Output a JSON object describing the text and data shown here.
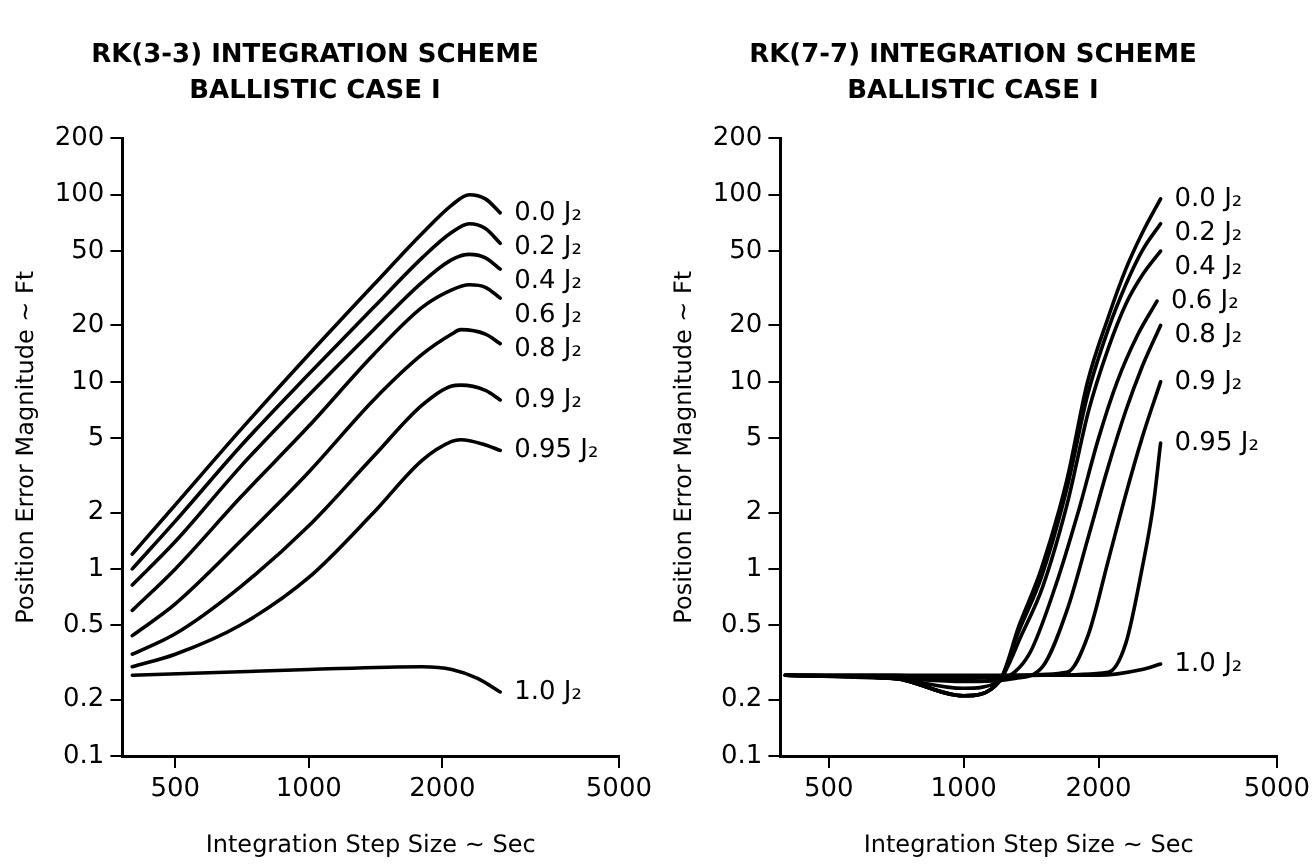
{
  "chart_data": [
    {
      "type": "line",
      "title": "RK(3-3) INTEGRATION SCHEME",
      "subtitle": "BALLISTIC CASE I",
      "xlabel": "Integration Step Size ~ Sec",
      "ylabel": "Position Error Magnitude ~ Ft",
      "log": "xy",
      "xlim": [
        380,
        5000
      ],
      "xticks": [
        500,
        1000,
        2000,
        5000
      ],
      "ylim": [
        0.1,
        200
      ],
      "yticks": [
        0.1,
        0.2,
        0.5,
        1,
        2,
        5,
        10,
        20,
        50,
        100,
        200
      ],
      "grid": false,
      "legend": false,
      "marker": "none",
      "line_style": "solid",
      "series": [
        {
          "name": "0.0 J₂",
          "color": "#000000",
          "x": [
            400,
            500,
            700,
            1000,
            1400,
            1800,
            2100,
            2300,
            2500,
            2700
          ],
          "values": [
            1.2,
            2.2,
            5.5,
            14,
            33,
            62,
            88,
            100,
            95,
            80
          ]
        },
        {
          "name": "0.2 J₂",
          "color": "#000000",
          "x": [
            400,
            500,
            700,
            1000,
            1400,
            1800,
            2100,
            2300,
            2500,
            2700
          ],
          "values": [
            1.0,
            1.8,
            4.5,
            11,
            25,
            46,
            63,
            70,
            66,
            55
          ]
        },
        {
          "name": "0.4 J₂",
          "color": "#000000",
          "x": [
            400,
            500,
            700,
            1000,
            1400,
            1800,
            2100,
            2300,
            2500,
            2700
          ],
          "values": [
            0.82,
            1.4,
            3.5,
            8.5,
            19,
            34,
            45,
            48,
            46,
            40
          ]
        },
        {
          "name": "0.6 J₂",
          "color": "#000000",
          "x": [
            400,
            500,
            700,
            1000,
            1400,
            1800,
            2100,
            2300,
            2500,
            2700
          ],
          "values": [
            0.6,
            1.0,
            2.4,
            5.8,
            14,
            25,
            31,
            33,
            32,
            28
          ]
        },
        {
          "name": "0.8 J₂",
          "color": "#000000",
          "x": [
            400,
            500,
            700,
            1000,
            1400,
            1800,
            2100,
            2200,
            2500,
            2700
          ],
          "values": [
            0.44,
            0.65,
            1.4,
            3.3,
            8,
            14,
            18,
            19,
            18,
            16
          ]
        },
        {
          "name": "0.9 J₂",
          "color": "#000000",
          "x": [
            400,
            500,
            700,
            1000,
            1400,
            1800,
            2100,
            2200,
            2500,
            2700
          ],
          "values": [
            0.35,
            0.45,
            0.8,
            1.7,
            4,
            7.5,
            9.5,
            9.6,
            9,
            8
          ]
        },
        {
          "name": "0.95 J₂",
          "color": "#000000",
          "x": [
            400,
            500,
            700,
            1000,
            1400,
            1800,
            2100,
            2200,
            2500,
            2700
          ],
          "values": [
            0.3,
            0.35,
            0.5,
            0.9,
            2,
            3.8,
            4.8,
            4.9,
            4.6,
            4.3
          ]
        },
        {
          "name": "1.0 J₂",
          "color": "#000000",
          "x": [
            400,
            1000,
            1800,
            2100,
            2400,
            2700
          ],
          "values": [
            0.27,
            0.29,
            0.3,
            0.29,
            0.26,
            0.22
          ]
        }
      ]
    },
    {
      "type": "line",
      "title": "RK(7-7) INTEGRATION SCHEME",
      "subtitle": "BALLISTIC CASE I",
      "xlabel": "Integration Step Size ~ Sec",
      "ylabel": "Position Error Magnitude ~ Ft",
      "log": "xy",
      "xlim": [
        390,
        5000
      ],
      "xticks": [
        500,
        1000,
        2000,
        5000
      ],
      "ylim": [
        0.1,
        200
      ],
      "yticks": [
        0.1,
        0.2,
        0.5,
        1,
        2,
        5,
        10,
        20,
        50,
        100,
        200
      ],
      "grid": false,
      "legend": false,
      "marker": "none",
      "line_style": "solid",
      "series": [
        {
          "name": "0.0 J₂",
          "color": "#000000",
          "x": [
            400,
            700,
            1000,
            1200,
            1330,
            1490,
            1700,
            1890,
            2100,
            2300,
            2500,
            2750
          ],
          "values": [
            0.27,
            0.26,
            0.21,
            0.25,
            0.5,
            1,
            3,
            10,
            22,
            40,
            62,
            95
          ]
        },
        {
          "name": "0.2 J₂",
          "color": "#000000",
          "x": [
            400,
            700,
            1000,
            1200,
            1330,
            1490,
            1700,
            1890,
            2100,
            2300,
            2500,
            2750
          ],
          "values": [
            0.27,
            0.26,
            0.21,
            0.25,
            0.47,
            0.9,
            2.7,
            8.5,
            19,
            33,
            50,
            70
          ]
        },
        {
          "name": "0.4 J₂",
          "color": "#000000",
          "x": [
            400,
            700,
            1000,
            1200,
            1350,
            1500,
            1700,
            1900,
            2100,
            2300,
            2500,
            2750
          ],
          "values": [
            0.27,
            0.26,
            0.21,
            0.25,
            0.45,
            0.8,
            2.2,
            7,
            15,
            26,
            37,
            50
          ]
        },
        {
          "name": "0.6 J₂",
          "color": "#000000",
          "x": [
            400,
            700,
            1000,
            1200,
            1400,
            1600,
            1800,
            2000,
            2200,
            2450,
            2700
          ],
          "values": [
            0.27,
            0.26,
            0.23,
            0.25,
            0.35,
            0.8,
            2,
            5,
            10,
            18,
            27
          ]
        },
        {
          "name": "0.8 J₂",
          "color": "#000000",
          "x": [
            400,
            700,
            1000,
            1300,
            1500,
            1700,
            1900,
            2100,
            2300,
            2500,
            2750
          ],
          "values": [
            0.27,
            0.26,
            0.25,
            0.26,
            0.3,
            0.6,
            1.5,
            3.5,
            7,
            12,
            20
          ]
        },
        {
          "name": "0.9 J₂",
          "color": "#000000",
          "x": [
            400,
            700,
            1000,
            1300,
            1700,
            1900,
            2100,
            2300,
            2500,
            2750
          ],
          "values": [
            0.27,
            0.27,
            0.26,
            0.27,
            0.28,
            0.45,
            1.1,
            2.5,
            5,
            10
          ]
        },
        {
          "name": "0.95 J₂",
          "color": "#000000",
          "x": [
            400,
            1000,
            1500,
            2100,
            2300,
            2500,
            2650,
            2750
          ],
          "values": [
            0.27,
            0.26,
            0.27,
            0.28,
            0.4,
            1,
            2.2,
            4.7
          ]
        },
        {
          "name": "1.0 J₂",
          "color": "#000000",
          "x": [
            400,
            2000,
            2500,
            2750
          ],
          "values": [
            0.27,
            0.27,
            0.29,
            0.31
          ]
        }
      ]
    }
  ]
}
